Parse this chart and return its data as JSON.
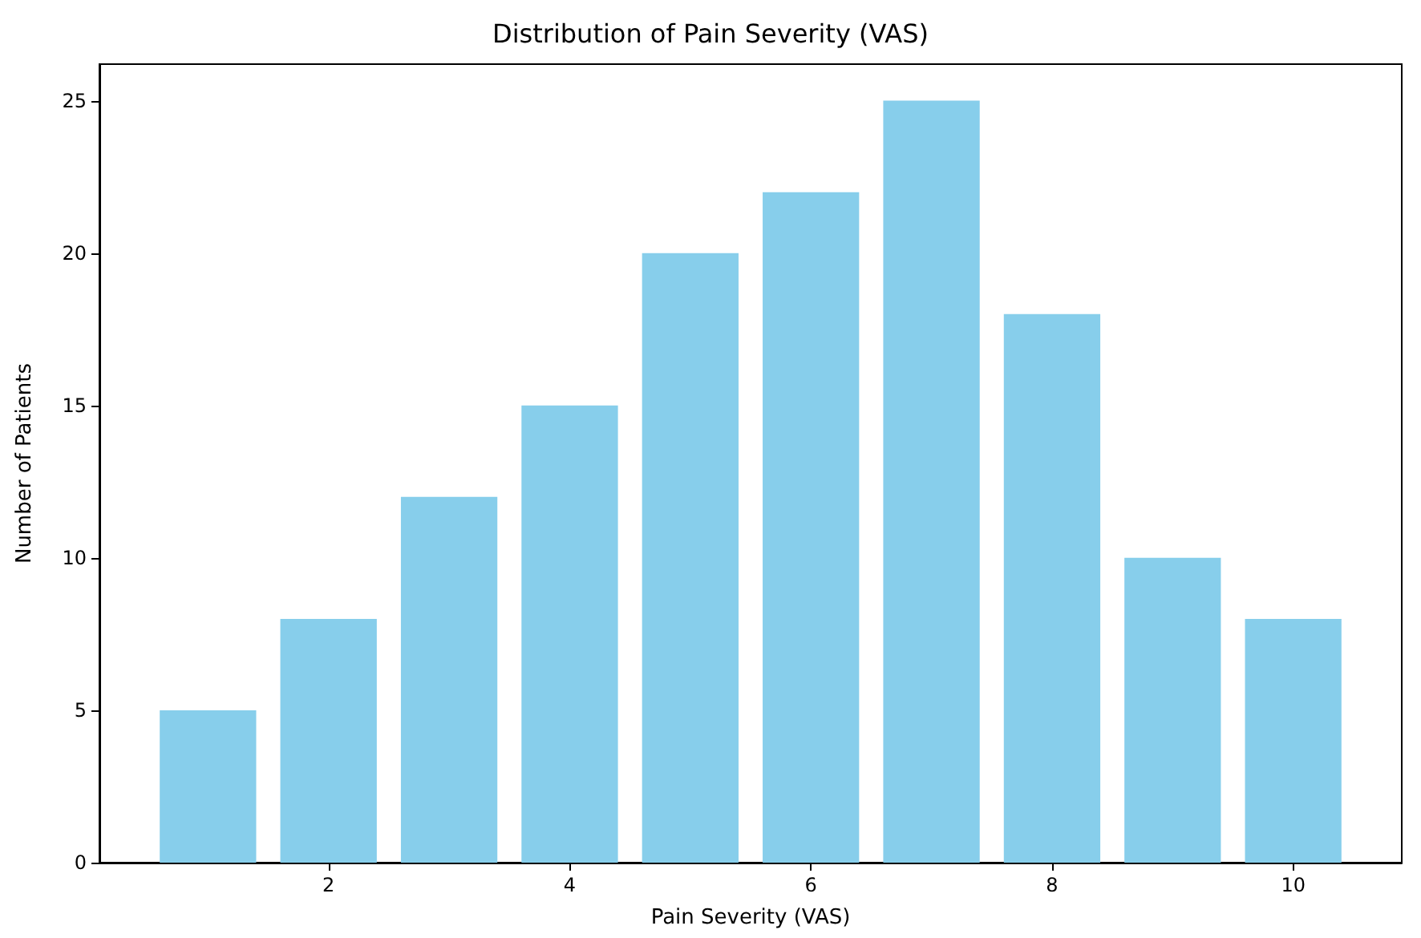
{
  "chart_data": {
    "type": "bar",
    "title": "Distribution of Pain Severity (VAS)",
    "xlabel": "Pain Severity (VAS)",
    "ylabel": "Number of Patients",
    "x": [
      1,
      2,
      3,
      4,
      5,
      6,
      7,
      8,
      9,
      10
    ],
    "values": [
      5,
      8,
      12,
      15,
      20,
      22,
      25,
      18,
      10,
      8
    ],
    "color": "#87ceeb",
    "xlim": [
      0.1,
      10.9
    ],
    "xticks": [
      2,
      4,
      6,
      8,
      10
    ],
    "ylim": [
      0,
      26.2
    ],
    "yticks": [
      0,
      5,
      10,
      15,
      20,
      25
    ],
    "grid": false
  }
}
